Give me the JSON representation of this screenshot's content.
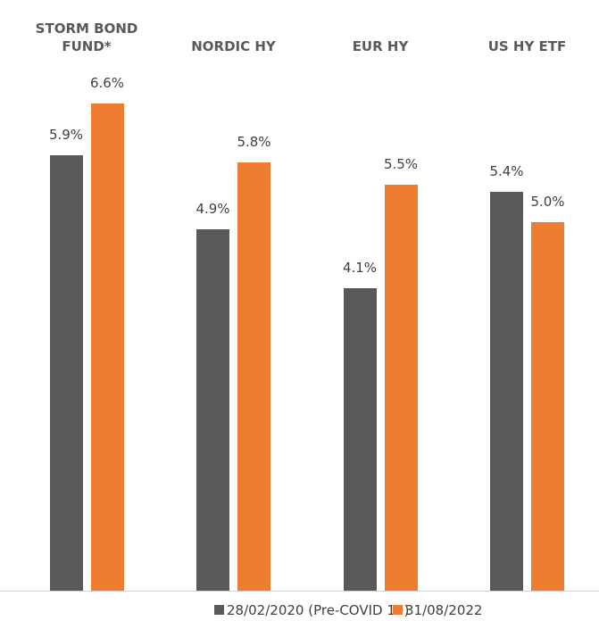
{
  "chart_data": {
    "type": "bar",
    "categories": [
      "STORM BOND FUND*",
      "NORDIC HY",
      "EUR HY",
      "US HY ETF"
    ],
    "series": [
      {
        "name": "28/02/2020 (Pre-COVID 19)",
        "color": "#595959",
        "values": [
          5.9,
          4.9,
          4.1,
          5.4
        ],
        "value_labels": [
          "5.9%",
          "4.9%",
          "4.1%",
          "5.4%"
        ]
      },
      {
        "name": "31/08/2022",
        "color": "#ed7d31",
        "values": [
          6.6,
          5.8,
          5.5,
          5.0
        ],
        "value_labels": [
          "6.6%",
          "5.8%",
          "5.5%",
          "5.0%"
        ]
      }
    ],
    "legend": "bottom"
  }
}
